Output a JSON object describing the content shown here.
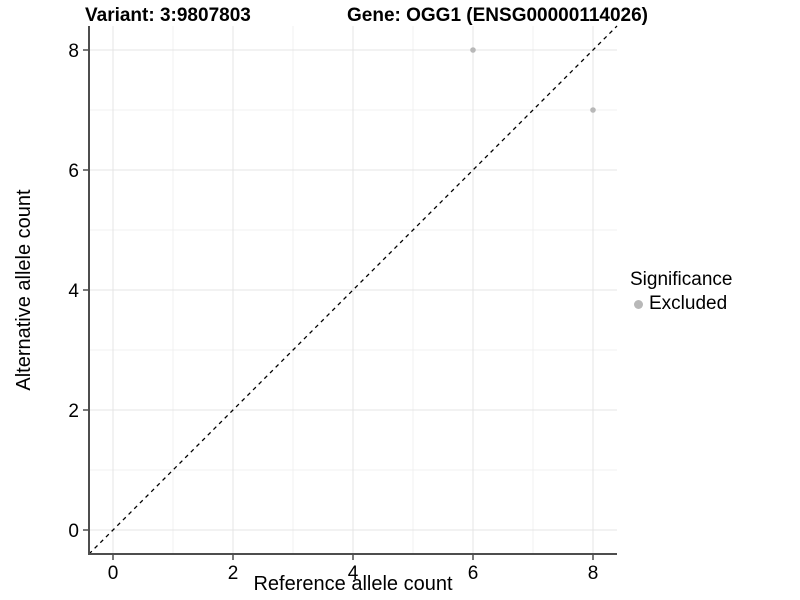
{
  "header": {
    "variant_title": "Variant: 3:9807803",
    "gene_title": "Gene: OGG1 (ENSG00000114026)"
  },
  "chart_data": {
    "type": "scatter",
    "title_left": "Variant: 3:9807803",
    "title_right": "Gene: OGG1 (ENSG00000114026)",
    "xlabel": "Reference allele count",
    "ylabel": "Alternative allele count",
    "xlim": [
      -0.4,
      8.4
    ],
    "ylim": [
      -0.4,
      8.4
    ],
    "x_ticks": [
      0,
      2,
      4,
      6,
      8
    ],
    "y_ticks": [
      0,
      2,
      4,
      6,
      8
    ],
    "x_minor_gridlines": [
      1,
      3,
      5,
      7
    ],
    "y_minor_gridlines": [
      1,
      3,
      5,
      7
    ],
    "grid": true,
    "legend_position": "right",
    "identity_line": {
      "from": [
        -0.4,
        -0.4
      ],
      "to": [
        8.4,
        8.4
      ],
      "style": "dashed",
      "color": "#000000"
    },
    "series": [
      {
        "name": "Excluded",
        "color": "#b8b8b8",
        "points": [
          {
            "x": 6,
            "y": 8
          },
          {
            "x": 8,
            "y": 7
          }
        ]
      }
    ],
    "legend": {
      "title": "Significance",
      "items": [
        {
          "label": "Excluded",
          "color": "#b8b8b8"
        }
      ]
    }
  },
  "colors": {
    "background": "#ffffff",
    "axis_line": "#4d4d4d",
    "tick_mark": "#4d4d4d",
    "grid_major": "#e4e4e4",
    "grid_minor": "#f1f1f1",
    "point": "#b8b8b8",
    "identity_line": "#000000",
    "text": "#000000"
  }
}
